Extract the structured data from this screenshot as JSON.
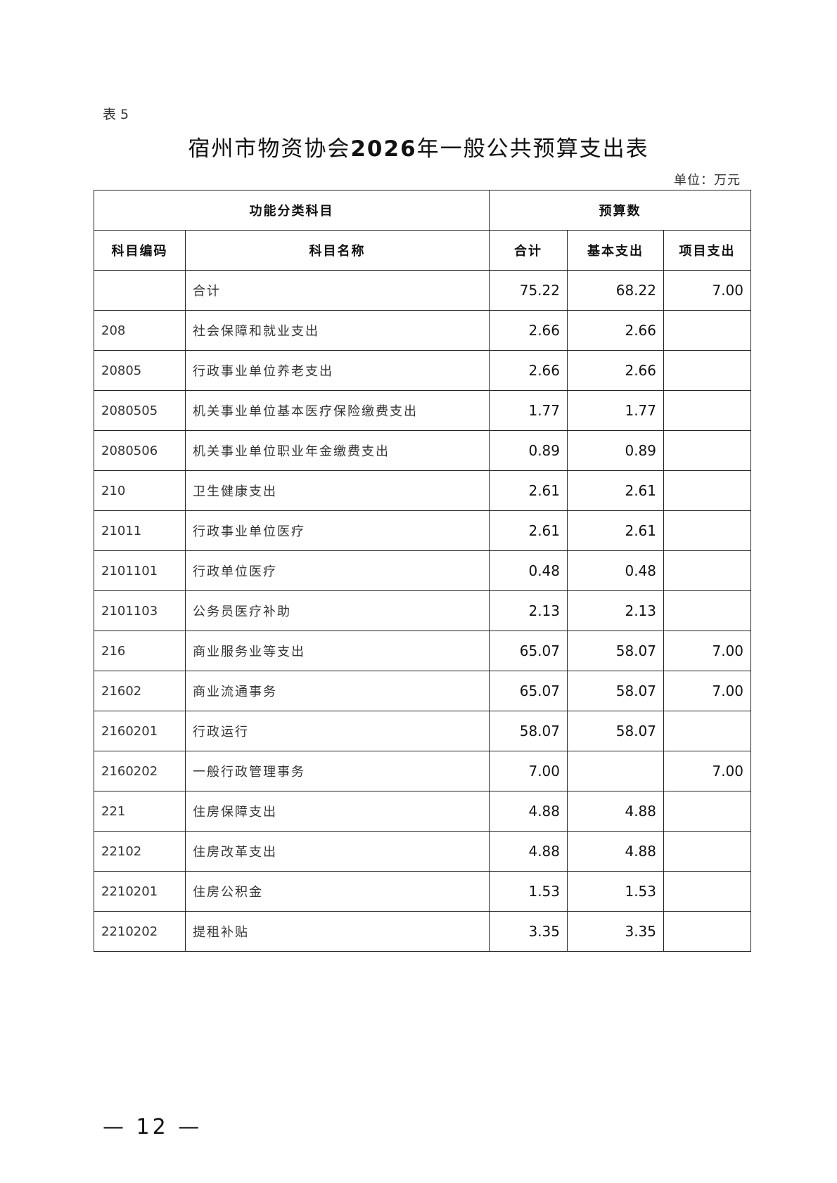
{
  "doc": {
    "label": "表 5",
    "title_prefix": "宿州市物资协会",
    "title_year": "2026",
    "title_suffix": "年一般公共预算支出表",
    "unit": "单位：万元",
    "page_number": "— 12 —"
  },
  "table": {
    "group_headers": [
      "功能分类科目",
      "预算数"
    ],
    "headers": [
      "科目编码",
      "科目名称",
      "合计",
      "基本支出",
      "项目支出"
    ],
    "rows": [
      {
        "code": "",
        "name": "合计",
        "total": "75.22",
        "basic": "68.22",
        "project": "7.00"
      },
      {
        "code": "208",
        "name": "社会保障和就业支出",
        "total": "2.66",
        "basic": "2.66",
        "project": ""
      },
      {
        "code": "20805",
        "name": "行政事业单位养老支出",
        "total": "2.66",
        "basic": "2.66",
        "project": ""
      },
      {
        "code": "2080505",
        "name": "机关事业单位基本医疗保险缴费支出",
        "total": "1.77",
        "basic": "1.77",
        "project": ""
      },
      {
        "code": "2080506",
        "name": "机关事业单位职业年金缴费支出",
        "total": "0.89",
        "basic": "0.89",
        "project": ""
      },
      {
        "code": "210",
        "name": "卫生健康支出",
        "total": "2.61",
        "basic": "2.61",
        "project": ""
      },
      {
        "code": "21011",
        "name": "行政事业单位医疗",
        "total": "2.61",
        "basic": "2.61",
        "project": ""
      },
      {
        "code": "2101101",
        "name": "行政单位医疗",
        "total": "0.48",
        "basic": "0.48",
        "project": ""
      },
      {
        "code": "2101103",
        "name": "公务员医疗补助",
        "total": "2.13",
        "basic": "2.13",
        "project": ""
      },
      {
        "code": "216",
        "name": "商业服务业等支出",
        "total": "65.07",
        "basic": "58.07",
        "project": "7.00"
      },
      {
        "code": "21602",
        "name": "商业流通事务",
        "total": "65.07",
        "basic": "58.07",
        "project": "7.00"
      },
      {
        "code": "2160201",
        "name": "行政运行",
        "total": "58.07",
        "basic": "58.07",
        "project": ""
      },
      {
        "code": "2160202",
        "name": "一般行政管理事务",
        "total": "7.00",
        "basic": "",
        "project": "7.00"
      },
      {
        "code": "221",
        "name": "住房保障支出",
        "total": "4.88",
        "basic": "4.88",
        "project": ""
      },
      {
        "code": "22102",
        "name": "住房改革支出",
        "total": "4.88",
        "basic": "4.88",
        "project": ""
      },
      {
        "code": "2210201",
        "name": "住房公积金",
        "total": "1.53",
        "basic": "1.53",
        "project": ""
      },
      {
        "code": "2210202",
        "name": "提租补贴",
        "total": "3.35",
        "basic": "3.35",
        "project": ""
      }
    ]
  }
}
